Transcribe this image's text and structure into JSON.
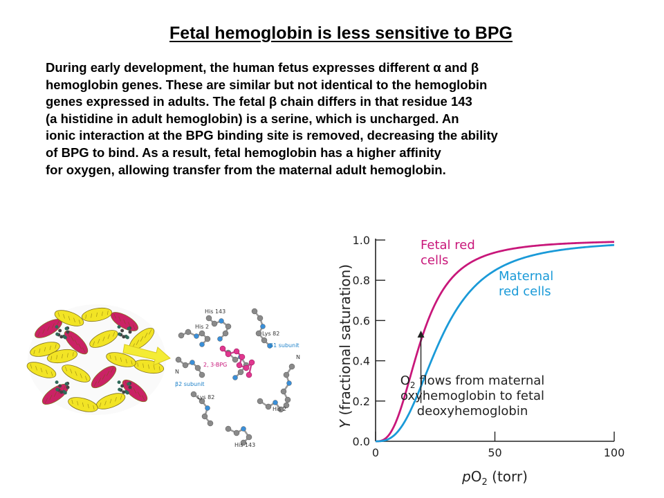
{
  "slide": {
    "title": "Fetal hemoglobin is less sensitive to BPG",
    "paragraph_lines": [
      "During early development, the human fetus expresses different α and β",
      "hemoglobin genes. These are similar but not identical to the hemoglobin",
      "genes expressed in adults. The fetal β chain differs in that residue 143",
      "(a histidine in adult hemoglobin) is a serine, which is uncharged. An",
      "ionic interaction at the BPG binding site is removed, decreasing the ability",
      "of BPG to bind. As a result, fetal hemoglobin has a higher affinity",
      "for oxygen, allowing transfer from the maternal adult hemoglobin."
    ]
  },
  "structure_figure": {
    "labels": {
      "his143_top": "His 143",
      "his2_top": "His 2",
      "lys82_right": "Lys 82",
      "beta1_subunit": "β1 subunit",
      "bpg": "2, 3-BPG",
      "n_left": "N",
      "n_right": "N",
      "beta2_subunit": "β2 subunit",
      "lys82_bottom": "Lys 82",
      "his2_bottom": "His 2",
      "his143_bottom": "His 143"
    },
    "colors": {
      "alpha_helix": "#f2e31a",
      "beta_chain": "#c8175e",
      "atom_carbon": "#8a8a8a",
      "atom_nitrogen": "#3a8fd8",
      "atom_phosphate": "#e0378f",
      "arrow": "#f4ec35"
    }
  },
  "chart_data": {
    "type": "line",
    "xlabel_italic": "p",
    "xlabel_main": "O",
    "xlabel_sub": "2",
    "xlabel_rest": " (torr)",
    "ylabel_italic": "Y",
    "ylabel_rest": " (fractional saturation)",
    "xlim": [
      0,
      100
    ],
    "ylim": [
      0,
      1.0
    ],
    "x_ticks": [
      0,
      50,
      100
    ],
    "x_tick_labels": [
      "0",
      "50",
      "100"
    ],
    "y_ticks": [
      0,
      0.2,
      0.4,
      0.6,
      0.8,
      1.0
    ],
    "y_tick_labels": [
      "0.0",
      "0.2",
      "0.4",
      "0.6",
      "0.8",
      "1.0"
    ],
    "grid": false,
    "series": [
      {
        "label_lines": [
          "Fetal red",
          "cells"
        ],
        "color": "#c8177a",
        "p50": 19,
        "n": 2.8
      },
      {
        "label_lines": [
          "Maternal",
          "red cells"
        ],
        "color": "#1a9ad8",
        "p50": 27,
        "n": 2.8
      }
    ],
    "annotation": {
      "lines": [
        "flows from maternal",
        "oxyhemoglobin to fetal",
        "deoxyhemoglobin"
      ],
      "prefix_main": "O",
      "prefix_sub": "2",
      "arrow_x": 19,
      "arrow_y_from": 0.19,
      "arrow_y_to": 0.55
    }
  }
}
